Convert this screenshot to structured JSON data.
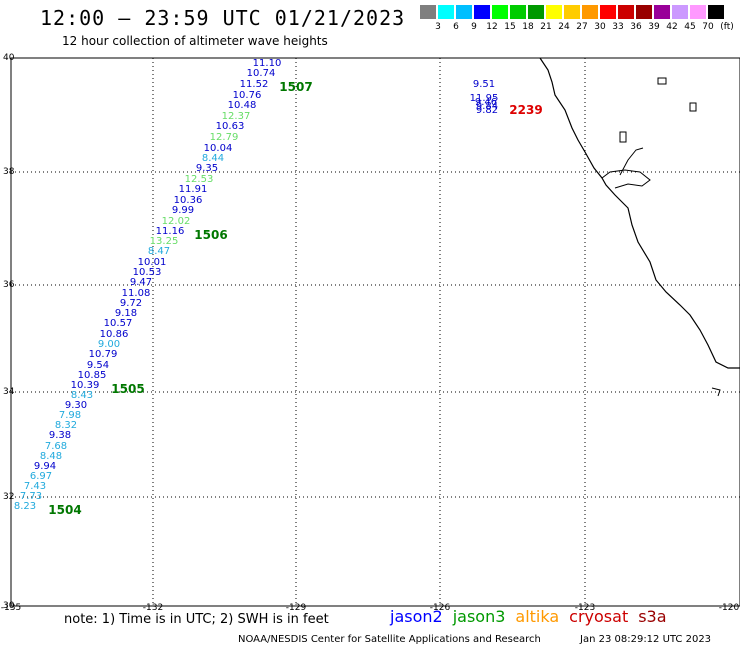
{
  "header": {
    "title": "12:00 – 23:59 UTC 01/21/2023",
    "subtitle": "12 hour collection of altimeter wave heights"
  },
  "scale": {
    "unit": "(ft)",
    "colors": [
      "#7f7f7f",
      "#00ffff",
      "#00bfff",
      "#0000ff",
      "#00ff00",
      "#00cc00",
      "#009900",
      "#ffff00",
      "#ffcc00",
      "#ff9900",
      "#ff0000",
      "#cc0000",
      "#990000",
      "#990099",
      "#cc99ff",
      "#ff99ff",
      "#000000"
    ],
    "labels": [
      "3",
      "6",
      "9",
      "12",
      "15",
      "18",
      "21",
      "24",
      "27",
      "30",
      "33",
      "36",
      "39",
      "42",
      "45",
      "70"
    ]
  },
  "axes": {
    "lon_ticks": [
      "-135",
      "-132",
      "-129",
      "-126",
      "-123",
      "-120"
    ],
    "lat_ticks": [
      "40",
      "38",
      "36",
      "34",
      "32",
      "30"
    ]
  },
  "tracks": {
    "track_points": [
      {
        "v": "11.10",
        "c": "#0000cc"
      },
      {
        "v": "10.74",
        "c": "#0000cc"
      },
      {
        "v": "11.52",
        "c": "#0000cc"
      },
      {
        "v": "10.76",
        "c": "#0000cc"
      },
      {
        "v": "10.48",
        "c": "#0000cc"
      },
      {
        "v": "12.37",
        "c": "#66dd66"
      },
      {
        "v": "10.63",
        "c": "#0000cc"
      },
      {
        "v": "12.79",
        "c": "#66dd66"
      },
      {
        "v": "10.04",
        "c": "#0000cc"
      },
      {
        "v": "8.44",
        "c": "#22aadd"
      },
      {
        "v": "9.35",
        "c": "#0000cc"
      },
      {
        "v": "12.53",
        "c": "#66dd66"
      },
      {
        "v": "11.91",
        "c": "#0000cc"
      },
      {
        "v": "10.36",
        "c": "#0000cc"
      },
      {
        "v": "9.99",
        "c": "#0000cc"
      },
      {
        "v": "12.02",
        "c": "#66dd66"
      },
      {
        "v": "11.16",
        "c": "#0000cc"
      },
      {
        "v": "13.25",
        "c": "#66dd66"
      },
      {
        "v": "8.47",
        "c": "#22aadd"
      },
      {
        "v": "10.01",
        "c": "#0000cc"
      },
      {
        "v": "10.53",
        "c": "#0000cc"
      },
      {
        "v": "9.47",
        "c": "#0000cc"
      },
      {
        "v": "11.08",
        "c": "#0000cc"
      },
      {
        "v": "9.72",
        "c": "#0000cc"
      },
      {
        "v": "9.18",
        "c": "#0000cc"
      },
      {
        "v": "10.57",
        "c": "#0000cc"
      },
      {
        "v": "10.86",
        "c": "#0000cc"
      },
      {
        "v": "9.00",
        "c": "#22aadd"
      },
      {
        "v": "10.79",
        "c": "#0000cc"
      },
      {
        "v": "9.54",
        "c": "#0000cc"
      },
      {
        "v": "10.85",
        "c": "#0000cc"
      },
      {
        "v": "10.39",
        "c": "#0000cc"
      },
      {
        "v": "8.43",
        "c": "#22aadd"
      },
      {
        "v": "9.30",
        "c": "#0000cc"
      },
      {
        "v": "7.98",
        "c": "#22aadd"
      },
      {
        "v": "8.32",
        "c": "#22aadd"
      },
      {
        "v": "9.38",
        "c": "#0000cc"
      },
      {
        "v": "7.68",
        "c": "#22aadd"
      },
      {
        "v": "8.48",
        "c": "#22aadd"
      },
      {
        "v": "9.94",
        "c": "#0000cc"
      },
      {
        "v": "6.97",
        "c": "#22aadd"
      },
      {
        "v": "7.43",
        "c": "#22aadd"
      },
      {
        "v": "7.73",
        "c": "#22aadd"
      },
      {
        "v": "8.23",
        "c": "#22aadd"
      }
    ],
    "pass_labels": [
      "1507",
      "1506",
      "1505",
      "1504"
    ],
    "coast_points": [
      {
        "v": "9.51",
        "c": "#0000cc"
      },
      {
        "v": "11.95",
        "c": "#0000cc"
      },
      {
        "v": "9.46",
        "c": "#0000cc"
      },
      {
        "v": "9.84",
        "c": "#0000cc"
      },
      {
        "v": "9.82",
        "c": "#0000cc"
      }
    ],
    "coast_pass": "2239"
  },
  "legend": {
    "items": [
      {
        "name": "jason2",
        "color": "#0000ff"
      },
      {
        "name": "jason3",
        "color": "#009900"
      },
      {
        "name": "altika",
        "color": "#ff9900"
      },
      {
        "name": "cryosat",
        "color": "#cc0000"
      },
      {
        "name": "s3a",
        "color": "#990000"
      }
    ]
  },
  "footer": {
    "note": "note: 1) Time is in UTC; 2) SWH is in feet",
    "credit": "NOAA/NESDIS Center for Satellite Applications and Research",
    "generated": "Jan 23 08:29:12 UTC 2023"
  }
}
